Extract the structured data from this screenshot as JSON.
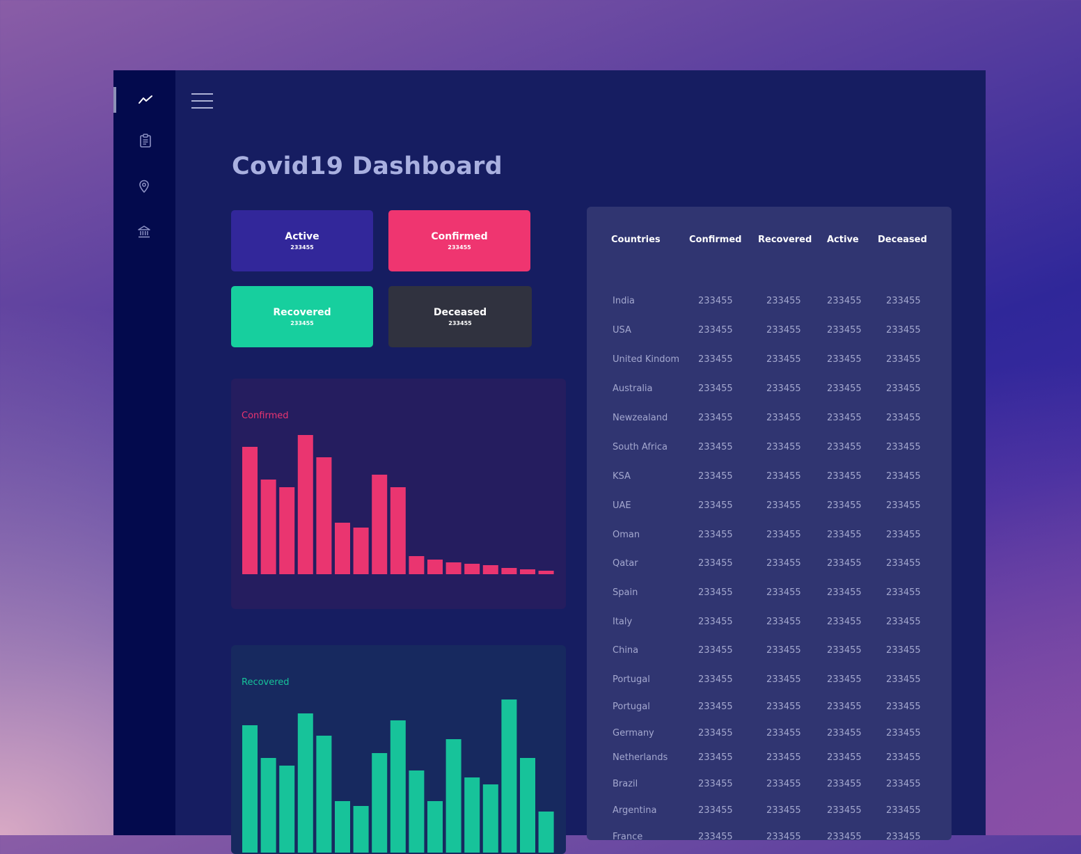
{
  "page": {
    "title": "Covid19 Dashboard"
  },
  "sidebar": {
    "items": [
      {
        "icon": "trend-line-icon"
      },
      {
        "icon": "clipboard-icon"
      },
      {
        "icon": "location-pin-icon"
      },
      {
        "icon": "bank-icon"
      }
    ]
  },
  "cards": {
    "active": {
      "label": "Active",
      "value": "233455",
      "color": "#32279a"
    },
    "confirmed": {
      "label": "Confirmed",
      "value": "233455",
      "color": "#ef3570"
    },
    "recovered": {
      "label": "Recovered",
      "value": "233455",
      "color": "#17cf9e"
    },
    "deceased": {
      "label": "Deceased",
      "value": "233455",
      "color": "#30323f"
    }
  },
  "charts": {
    "confirmed": {
      "title": "Confirmed",
      "color": "#ea3570"
    },
    "recovered": {
      "title": "Recovered",
      "color": "#17c39a"
    }
  },
  "chart_data": [
    {
      "type": "bar",
      "title": "Confirmed",
      "values": [
        183,
        136,
        125,
        200,
        168,
        74,
        67,
        143,
        125,
        26,
        21,
        17,
        15,
        13,
        9,
        7,
        5
      ]
    },
    {
      "type": "bar",
      "title": "Recovered",
      "values": [
        183,
        136,
        125,
        200,
        168,
        74,
        67,
        143,
        190,
        118,
        74,
        163,
        108,
        98,
        220,
        136,
        59
      ]
    }
  ],
  "table": {
    "headers": [
      "Countries",
      "Confirmed",
      "Recovered",
      "Active",
      "Deceased"
    ],
    "rows": [
      {
        "country": "India",
        "confirmed": "233455",
        "recovered": "233455",
        "active": "233455",
        "deceased": "233455"
      },
      {
        "country": "USA",
        "confirmed": "233455",
        "recovered": "233455",
        "active": "233455",
        "deceased": "233455"
      },
      {
        "country": "United Kindom",
        "confirmed": "233455",
        "recovered": "233455",
        "active": "233455",
        "deceased": "233455"
      },
      {
        "country": "Australia",
        "confirmed": "233455",
        "recovered": "233455",
        "active": "233455",
        "deceased": "233455"
      },
      {
        "country": "Newzealand",
        "confirmed": "233455",
        "recovered": "233455",
        "active": "233455",
        "deceased": "233455"
      },
      {
        "country": "South Africa",
        "confirmed": "233455",
        "recovered": "233455",
        "active": "233455",
        "deceased": "233455"
      },
      {
        "country": "KSA",
        "confirmed": "233455",
        "recovered": "233455",
        "active": "233455",
        "deceased": "233455"
      },
      {
        "country": "UAE",
        "confirmed": "233455",
        "recovered": "233455",
        "active": "233455",
        "deceased": "233455"
      },
      {
        "country": "Oman",
        "confirmed": "233455",
        "recovered": "233455",
        "active": "233455",
        "deceased": "233455"
      },
      {
        "country": "Qatar",
        "confirmed": "233455",
        "recovered": "233455",
        "active": "233455",
        "deceased": "233455"
      },
      {
        "country": "Spain",
        "confirmed": "233455",
        "recovered": "233455",
        "active": "233455",
        "deceased": "233455"
      },
      {
        "country": "Italy",
        "confirmed": "233455",
        "recovered": "233455",
        "active": "233455",
        "deceased": "233455"
      },
      {
        "country": "China",
        "confirmed": "233455",
        "recovered": "233455",
        "active": "233455",
        "deceased": "233455"
      },
      {
        "country": "Portugal",
        "confirmed": "233455",
        "recovered": "233455",
        "active": "233455",
        "deceased": "233455"
      },
      {
        "country": "Portugal",
        "confirmed": "233455",
        "recovered": "233455",
        "active": "233455",
        "deceased": "233455"
      },
      {
        "country": "Germany",
        "confirmed": "233455",
        "recovered": "233455",
        "active": "233455",
        "deceased": "233455"
      },
      {
        "country": "Netherlands",
        "confirmed": "233455",
        "recovered": "233455",
        "active": "233455",
        "deceased": "233455"
      },
      {
        "country": "Brazil",
        "confirmed": "233455",
        "recovered": "233455",
        "active": "233455",
        "deceased": "233455"
      },
      {
        "country": "Argentina",
        "confirmed": "233455",
        "recovered": "233455",
        "active": "233455",
        "deceased": "233455"
      },
      {
        "country": "France",
        "confirmed": "233455",
        "recovered": "233455",
        "active": "233455",
        "deceased": "233455"
      }
    ]
  }
}
